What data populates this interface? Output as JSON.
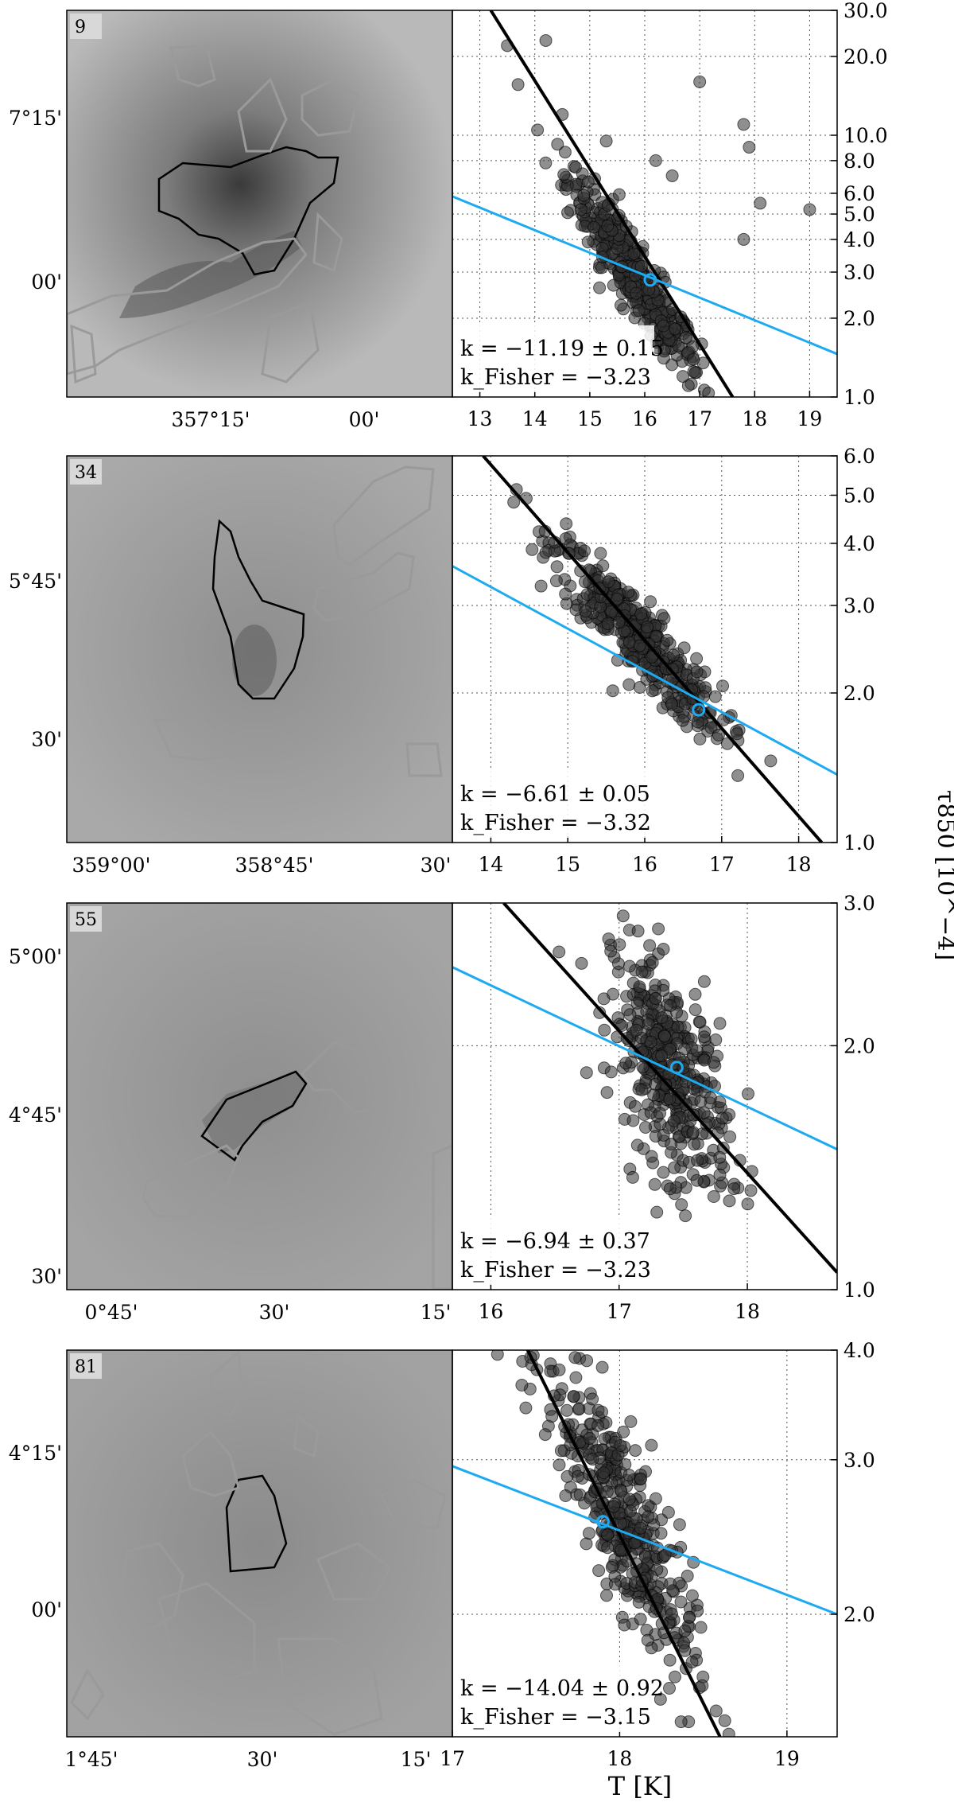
{
  "figure": {
    "xlabel": "T [K]",
    "ylabel": "τ850 [10^−4]"
  },
  "chart_data": [
    {
      "type": "scatter",
      "panel_id": "9",
      "map_xticks": [
        "357°15'",
        "00'"
      ],
      "map_yticks": [
        "7°15'",
        "00'"
      ],
      "xlim": [
        12.5,
        19.5
      ],
      "ylim": [
        1.0,
        30.0
      ],
      "yscale": "log",
      "xticks": [
        "13",
        "14",
        "15",
        "16",
        "17",
        "18",
        "19"
      ],
      "yticks": [
        "30.0",
        "20.0",
        "10.0",
        "8.0",
        "6.0",
        "5.0",
        "4.0",
        "3.0",
        "2.0",
        "1.0"
      ],
      "grid": true,
      "fit_black": {
        "slope_k": -11.19,
        "x": [
          13.2,
          17.6
        ],
        "y": [
          30.0,
          1.0
        ]
      },
      "fit_fisher": {
        "slope_k": -3.23,
        "x": [
          12.5,
          19.5
        ],
        "y": [
          5.84,
          1.46
        ]
      },
      "anchor": {
        "x": 16.1,
        "y": 2.8
      },
      "cloud": {
        "x_center": 15.8,
        "x_spread": 1.1,
        "y_at_center": 2.9,
        "scatter_dex": 0.07
      },
      "outliers": [
        {
          "x": 13.5,
          "y": 22.0
        },
        {
          "x": 14.2,
          "y": 23.0
        },
        {
          "x": 17.0,
          "y": 16.0
        },
        {
          "x": 17.8,
          "y": 11.0
        },
        {
          "x": 17.9,
          "y": 9.0
        },
        {
          "x": 18.1,
          "y": 5.5
        },
        {
          "x": 19.0,
          "y": 5.2
        },
        {
          "x": 17.8,
          "y": 4.0
        },
        {
          "x": 16.5,
          "y": 7.0
        },
        {
          "x": 16.2,
          "y": 8.0
        },
        {
          "x": 14.5,
          "y": 12.0
        },
        {
          "x": 15.3,
          "y": 9.5
        }
      ],
      "k_label": "k = −11.19 ± 0.15",
      "kfisher_label": "k_Fisher = −3.23"
    },
    {
      "type": "scatter",
      "panel_id": "34",
      "map_xticks": [
        "359°00'",
        "358°45'",
        "30'"
      ],
      "map_yticks": [
        "5°45'",
        "30'"
      ],
      "xlim": [
        13.5,
        18.5
      ],
      "ylim": [
        1.0,
        6.0
      ],
      "yscale": "log",
      "xticks": [
        "14",
        "15",
        "16",
        "17",
        "18"
      ],
      "yticks": [
        "6.0",
        "5.0",
        "4.0",
        "3.0",
        "2.0",
        "1.0"
      ],
      "grid": true,
      "fit_black": {
        "slope_k": -6.61,
        "x": [
          13.9,
          18.3
        ],
        "y": [
          6.0,
          1.0
        ]
      },
      "fit_fisher": {
        "slope_k": -3.32,
        "x": [
          13.5,
          18.5
        ],
        "y": [
          3.6,
          1.37
        ]
      },
      "anchor": {
        "x": 16.7,
        "y": 1.85
      },
      "cloud": {
        "x_center": 15.9,
        "x_spread": 1.0,
        "y_at_center": 2.6,
        "scatter_dex": 0.04
      },
      "outliers": [],
      "k_label": "k = −6.61 ± 0.05",
      "kfisher_label": "k_Fisher = −3.32"
    },
    {
      "type": "scatter",
      "panel_id": "55",
      "map_xticks": [
        "0°45'",
        "30'",
        "15'"
      ],
      "map_yticks": [
        "5°00'",
        "4°45'",
        "30'"
      ],
      "xlim": [
        15.7,
        18.7
      ],
      "ylim": [
        1.0,
        3.0
      ],
      "yscale": "log",
      "xticks": [
        "16",
        "17",
        "18"
      ],
      "yticks": [
        "3.0",
        "2.0",
        "1.0"
      ],
      "grid": true,
      "fit_black": {
        "slope_k": -6.94,
        "x": [
          16.1,
          18.7
        ],
        "y": [
          3.0,
          1.05
        ]
      },
      "fit_fisher": {
        "slope_k": -3.23,
        "x": [
          15.7,
          18.7
        ],
        "y": [
          2.5,
          1.49
        ]
      },
      "anchor": {
        "x": 17.45,
        "y": 1.88
      },
      "cloud": {
        "x_center": 17.4,
        "x_spread": 0.42,
        "y_at_center": 1.85,
        "scatter_dex": 0.06
      },
      "outliers": [],
      "k_label": "k = −6.94 ± 0.37",
      "kfisher_label": "k_Fisher = −3.23"
    },
    {
      "type": "scatter",
      "panel_id": "81",
      "map_xticks": [
        "1°45'",
        "30'",
        "15'"
      ],
      "map_yticks": [
        "4°15'",
        "00'"
      ],
      "xlim": [
        17.0,
        19.3
      ],
      "ylim": [
        1.45,
        4.0
      ],
      "yscale": "log",
      "xticks": [
        "17",
        "18",
        "19"
      ],
      "yticks": [
        "4.0",
        "3.0",
        "2.0"
      ],
      "grid": true,
      "fit_black": {
        "slope_k": -14.04,
        "x": [
          17.45,
          18.6
        ],
        "y": [
          4.0,
          1.45
        ]
      },
      "fit_fisher": {
        "slope_k": -3.15,
        "x": [
          17.0,
          19.3
        ],
        "y": [
          2.95,
          2.0
        ]
      },
      "anchor": {
        "x": 17.9,
        "y": 2.55
      },
      "cloud": {
        "x_center": 18.0,
        "x_spread": 0.4,
        "y_at_center": 2.6,
        "scatter_dex": 0.05
      },
      "outliers": [],
      "k_label": "k = −14.04 ± 0.92",
      "kfisher_label": "k_Fisher = −3.15"
    }
  ]
}
